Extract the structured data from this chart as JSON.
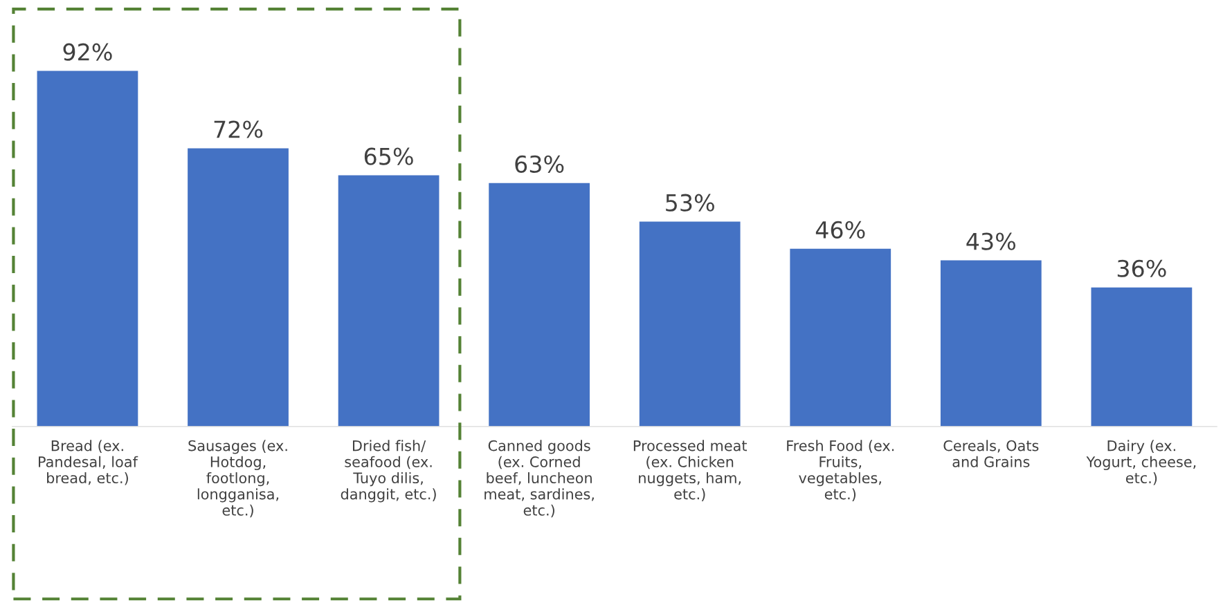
{
  "chart_data": {
    "type": "bar",
    "categories": [
      "Bread (ex.\nPandesal, loaf\nbread, etc.)",
      "Sausages (ex.\nHotdog,\nfootlong,\nlongganisa,\netc.)",
      "Dried fish/\nseafood (ex.\nTuyo dilis,\ndanggit, etc.)",
      "Canned goods\n(ex. Corned\nbeef, luncheon\nmeat, sardines,\netc.)",
      "Processed meat\n(ex. Chicken\nnuggets, ham,\netc.)",
      "Fresh Food (ex.\nFruits,\nvegetables,\netc.)",
      "Cereals, Oats\nand Grains",
      "Dairy (ex.\nYogurt, cheese,\netc.)"
    ],
    "values": [
      92,
      72,
      65,
      63,
      53,
      46,
      43,
      36
    ],
    "value_labels": [
      "92%",
      "72%",
      "65%",
      "63%",
      "53%",
      "46%",
      "43%",
      "36%"
    ],
    "color": "#4472c4",
    "grid": false,
    "legend": false,
    "tick_labels": "x"
  }
}
